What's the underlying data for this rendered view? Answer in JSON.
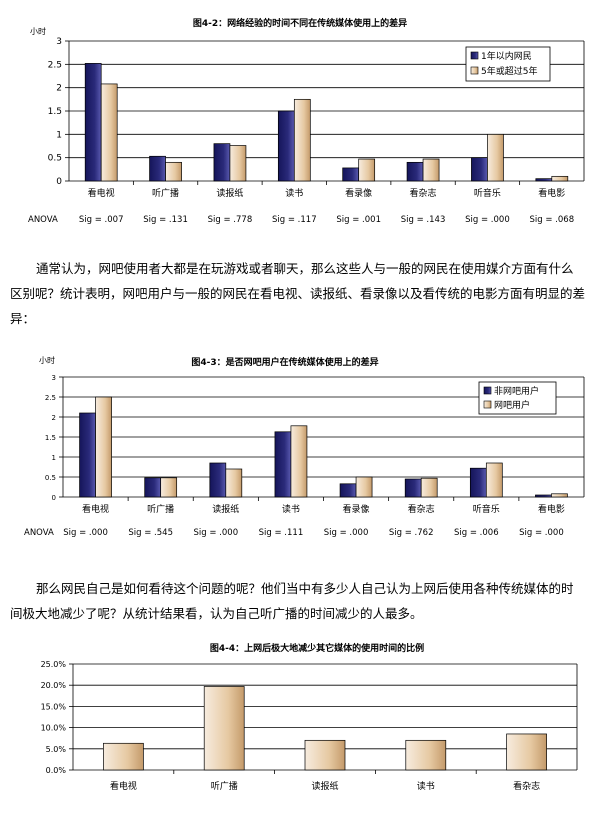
{
  "chart_data": [
    {
      "type": "bar",
      "title": "图4-2：网络经验的时间不同在传统媒体使用上的差异",
      "ylabel": "小时",
      "categories": [
        "看电视",
        "听广播",
        "读报纸",
        "读书",
        "看录像",
        "看杂志",
        "听音乐",
        "看电影"
      ],
      "series": [
        {
          "name": "1年以内网民",
          "values": [
            2.52,
            0.53,
            0.8,
            1.5,
            0.28,
            0.4,
            0.5,
            0.05
          ]
        },
        {
          "name": "5年或超过5年",
          "values": [
            2.08,
            0.4,
            0.76,
            1.75,
            0.47,
            0.47,
            1.0,
            0.1
          ]
        }
      ],
      "ylim": [
        0,
        3
      ],
      "yticks": [
        "0",
        "0.5",
        "1",
        "1.5",
        "2",
        "2.5",
        "3"
      ],
      "legend_position": "top-right",
      "anova_label": "ANOVA",
      "annotations": [
        "Sig = .007",
        "Sig = .131",
        "Sig = .778",
        "Sig = .117",
        "Sig = .001",
        "Sig = .143",
        "Sig = .000",
        "Sig = .068"
      ]
    },
    {
      "type": "bar",
      "title": "图4-3：是否网吧用户在传统媒体使用上的差异",
      "ylabel": "小时",
      "categories": [
        "看电视",
        "听广播",
        "读报纸",
        "读书",
        "看录像",
        "看杂志",
        "听音乐",
        "看电影"
      ],
      "series": [
        {
          "name": "非网吧用户",
          "values": [
            2.1,
            0.48,
            0.85,
            1.63,
            0.33,
            0.45,
            0.72,
            0.05
          ]
        },
        {
          "name": "网吧用户",
          "values": [
            2.5,
            0.48,
            0.7,
            1.78,
            0.5,
            0.47,
            0.85,
            0.08
          ]
        }
      ],
      "ylim": [
        0,
        3
      ],
      "yticks": [
        "0",
        "0.5",
        "1",
        "1.5",
        "2",
        "2.5",
        "3"
      ],
      "legend_position": "top-right",
      "anova_label": "ANOVA",
      "annotations": [
        "Sig = .000",
        "Sig = .545",
        "Sig = .000",
        "Sig = .111",
        "Sig = .000",
        "Sig = .762",
        "Sig = .006",
        "Sig = .000"
      ]
    },
    {
      "type": "bar",
      "title": "图4-4：上网后极大地减少其它媒体的使用时间的比例",
      "categories": [
        "看电视",
        "听广播",
        "读报纸",
        "读书",
        "看杂志"
      ],
      "values": [
        6.3,
        19.7,
        7.0,
        7.0,
        8.5
      ],
      "ylim": [
        0,
        25
      ],
      "yticks": [
        "0.0%",
        "5.0%",
        "10.0%",
        "15.0%",
        "20.0%",
        "25.0%"
      ]
    }
  ],
  "text": {
    "para1": "通常认为，网吧使用者大都是在玩游戏或者聊天，那么这些人与一般的网民在使用媒介方面有什么区别呢？统计表明，网吧用户与一般的网民在看电视、读报纸、看录像以及看传统的电影方面有明显的差异：",
    "para2": "那么网民自己是如何看待这个问题的呢？他们当中有多少人自己认为上网后使用各种传统媒体的时间极大地减少了呢？从统计结果看，认为自己听广播的时间减少的人最多。"
  },
  "colors": {
    "series_dark": "#2a2a7a",
    "series_light": "#e6c9a2",
    "grid": "#000000",
    "bar_edge": "#000000"
  }
}
